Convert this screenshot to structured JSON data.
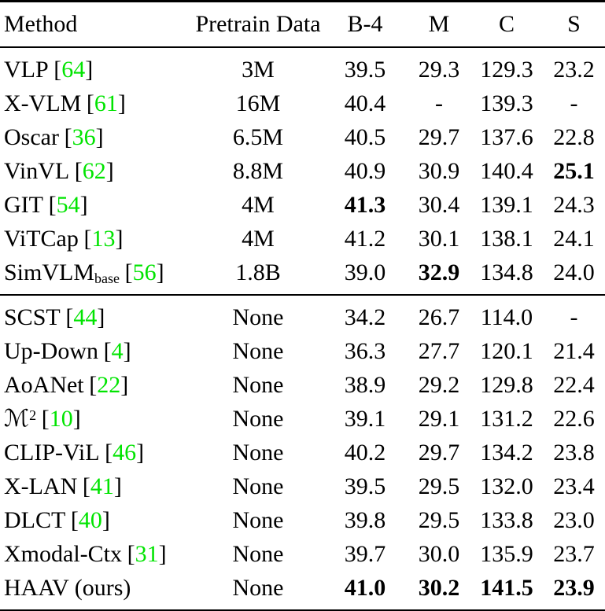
{
  "colors": {
    "citation_green": "#00e400",
    "text": "#000000",
    "background": "#ffffff"
  },
  "table": {
    "cite_open": "[",
    "cite_close": "]",
    "columns": [
      "Method",
      "Pretrain Data",
      "B-4",
      "M",
      "C",
      "S"
    ],
    "groups": [
      {
        "name": "pretrained-methods",
        "rows": [
          {
            "method": "VLP",
            "cite": "64",
            "pretrain": "3M",
            "values": [
              "39.5",
              "29.3",
              "129.3",
              "23.2"
            ],
            "bold": [
              false,
              false,
              false,
              false
            ]
          },
          {
            "method": "X-VLM",
            "cite": "61",
            "pretrain": "16M",
            "values": [
              "40.4",
              "-",
              "139.3",
              "-"
            ],
            "bold": [
              false,
              false,
              false,
              false
            ]
          },
          {
            "method": "Oscar",
            "cite": "36",
            "pretrain": "6.5M",
            "values": [
              "40.5",
              "29.7",
              "137.6",
              "22.8"
            ],
            "bold": [
              false,
              false,
              false,
              false
            ]
          },
          {
            "method": "VinVL",
            "cite": "62",
            "pretrain": "8.8M",
            "values": [
              "40.9",
              "30.9",
              "140.4",
              "25.1"
            ],
            "bold": [
              false,
              false,
              false,
              true
            ]
          },
          {
            "method": "GIT",
            "cite": "54",
            "pretrain": "4M",
            "values": [
              "41.3",
              "30.4",
              "139.1",
              "24.3"
            ],
            "bold": [
              true,
              false,
              false,
              false
            ]
          },
          {
            "method": "ViTCap",
            "cite": "13",
            "pretrain": "4M",
            "values": [
              "41.2",
              "30.1",
              "138.1",
              "24.1"
            ],
            "bold": [
              false,
              false,
              false,
              false
            ]
          },
          {
            "method": "SimVLM",
            "sub": "base",
            "cite": "56",
            "pretrain": "1.8B",
            "values": [
              "39.0",
              "32.9",
              "134.8",
              "24.0"
            ],
            "bold": [
              false,
              true,
              false,
              false
            ]
          }
        ]
      },
      {
        "name": "non-pretrained-methods",
        "rows": [
          {
            "method": "SCST",
            "cite": "44",
            "pretrain": "None",
            "values": [
              "34.2",
              "26.7",
              "114.0",
              "-"
            ],
            "bold": [
              false,
              false,
              false,
              false
            ]
          },
          {
            "method": "Up-Down",
            "cite": "4",
            "pretrain": "None",
            "values": [
              "36.3",
              "27.7",
              "120.1",
              "21.4"
            ],
            "bold": [
              false,
              false,
              false,
              false
            ]
          },
          {
            "method": "AoANet",
            "cite": "22",
            "pretrain": "None",
            "values": [
              "38.9",
              "29.2",
              "129.8",
              "22.4"
            ],
            "bold": [
              false,
              false,
              false,
              false
            ]
          },
          {
            "method": "ℳ",
            "sup": "2",
            "cite": "10",
            "pretrain": "None",
            "values": [
              "39.1",
              "29.1",
              "131.2",
              "22.6"
            ],
            "bold": [
              false,
              false,
              false,
              false
            ]
          },
          {
            "method": "CLIP-ViL",
            "cite": "46",
            "pretrain": "None",
            "values": [
              "40.2",
              "29.7",
              "134.2",
              "23.8"
            ],
            "bold": [
              false,
              false,
              false,
              false
            ]
          },
          {
            "method": "X-LAN",
            "cite": "41",
            "pretrain": "None",
            "values": [
              "39.5",
              "29.5",
              "132.0",
              "23.4"
            ],
            "bold": [
              false,
              false,
              false,
              false
            ]
          },
          {
            "method": "DLCT",
            "cite": "40",
            "pretrain": "None",
            "values": [
              "39.8",
              "29.5",
              "133.8",
              "23.0"
            ],
            "bold": [
              false,
              false,
              false,
              false
            ]
          },
          {
            "method": "Xmodal-Ctx",
            "cite": "31",
            "pretrain": "None",
            "values": [
              "39.7",
              "30.0",
              "135.9",
              "23.7"
            ],
            "bold": [
              false,
              false,
              false,
              false
            ]
          },
          {
            "method": "HAAV (ours)",
            "pretrain": "None",
            "values": [
              "41.0",
              "30.2",
              "141.5",
              "23.9"
            ],
            "bold": [
              true,
              true,
              true,
              true
            ]
          }
        ]
      }
    ]
  }
}
